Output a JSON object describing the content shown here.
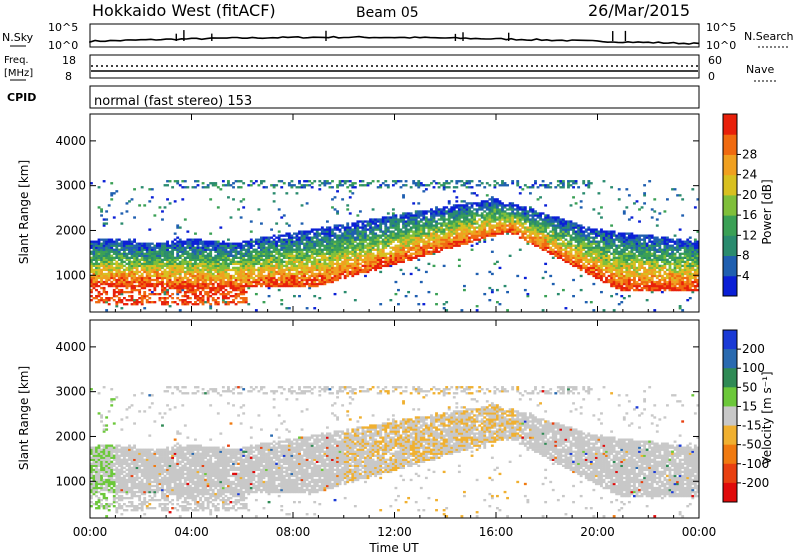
{
  "header": {
    "title": "Hokkaido West (fitACF)",
    "beam": "Beam 05",
    "date": "26/Mar/2015"
  },
  "noise_panel": {
    "left_label": "N.Sky",
    "left_ticks": [
      "10^5",
      "10^0"
    ],
    "right_ticks": [
      "10^5",
      "10^0"
    ],
    "right_label": "N.Search"
  },
  "freq_panel": {
    "left_label_line1": "Freq.",
    "left_label_line2": "[MHz]",
    "left_ticks": [
      "18",
      "8"
    ],
    "right_ticks": [
      "60",
      "0"
    ],
    "right_label": "Nave"
  },
  "cpid": {
    "label": "CPID",
    "value": "normal (fast stereo) 153"
  },
  "chart_data": [
    {
      "type": "heatmap",
      "name": "power",
      "ylabel": "Slant Range [km]",
      "y_ticks": [
        "1000",
        "2000",
        "3000",
        "4000"
      ],
      "ylim": [
        180,
        4600
      ],
      "x_ticks": [
        "00:00",
        "04:00",
        "08:00",
        "12:00",
        "16:00",
        "20:00",
        "00:00"
      ],
      "xlim_hours": [
        0,
        24
      ],
      "colorbar": {
        "label": "Power [dB]",
        "ticks": [
          "4",
          "8",
          "12",
          "16",
          "20",
          "24",
          "28"
        ],
        "colors": [
          "#0a1fd6",
          "#1f5fb0",
          "#2a8b6e",
          "#3aa055",
          "#7fbf3a",
          "#d8c020",
          "#f0a020",
          "#f06a10",
          "#e8200a"
        ]
      }
    },
    {
      "type": "heatmap",
      "name": "velocity",
      "ylabel": "Slant Range [km]",
      "y_ticks": [
        "1000",
        "2000",
        "3000",
        "4000"
      ],
      "ylim": [
        180,
        4600
      ],
      "x_ticks": [
        "00:00",
        "04:00",
        "08:00",
        "12:00",
        "16:00",
        "20:00",
        "00:00"
      ],
      "xlabel": "Time UT",
      "xlim_hours": [
        0,
        24
      ],
      "colorbar": {
        "label": "Velocity [m s⁻¹]",
        "ticks": [
          "200",
          "100",
          "50",
          "15",
          "-15",
          "-50",
          "-100",
          "-200"
        ],
        "colors": [
          "#1a3ad6",
          "#2a6ab0",
          "#2f8a55",
          "#6cc83a",
          "#c8c8c8",
          "#f0b030",
          "#f07a10",
          "#e84010",
          "#e00a0a"
        ]
      }
    }
  ]
}
